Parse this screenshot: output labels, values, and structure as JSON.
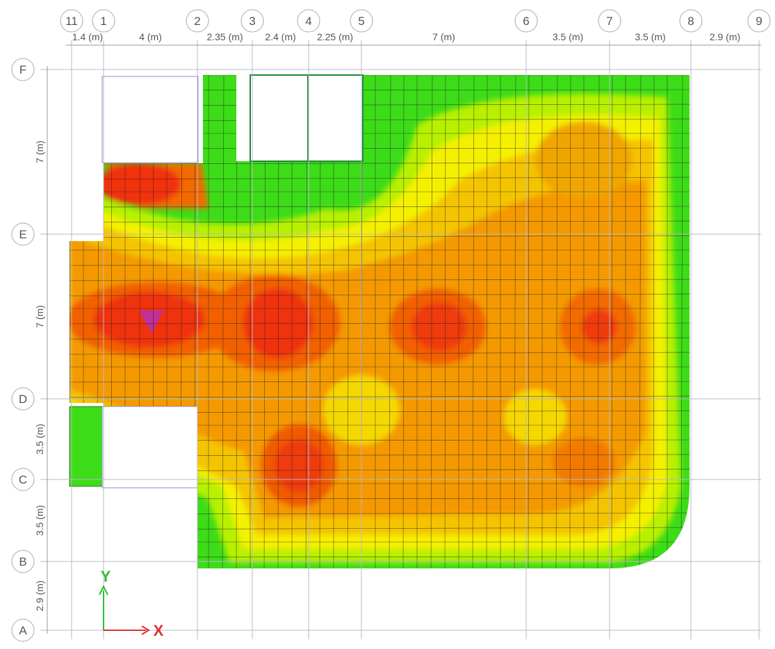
{
  "grid_x": [
    {
      "label": "11"
    },
    {
      "label": "1"
    },
    {
      "label": "2"
    },
    {
      "label": "3"
    },
    {
      "label": "4"
    },
    {
      "label": "5"
    },
    {
      "label": "6"
    },
    {
      "label": "7"
    },
    {
      "label": "8"
    },
    {
      "label": "9"
    }
  ],
  "grid_y": [
    {
      "label": "F"
    },
    {
      "label": "E"
    },
    {
      "label": "D"
    },
    {
      "label": "C"
    },
    {
      "label": "B"
    },
    {
      "label": "A"
    }
  ],
  "dims_x": [
    "1.4 (m)",
    "4 (m)",
    "2.35 (m)",
    "2.4 (m)",
    "2.25 (m)",
    "7 (m)",
    "3.5 (m)",
    "3.5 (m)",
    "2.9 (m)"
  ],
  "dims_y": [
    "7 (m)",
    "7 (m)",
    "3.5 (m)",
    "3.5 (m)",
    "2.9 (m)"
  ],
  "axes": {
    "x": "X",
    "y": "Y"
  }
}
